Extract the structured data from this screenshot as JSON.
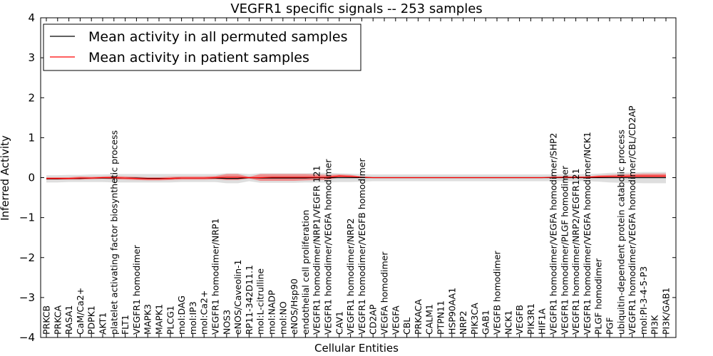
{
  "chart_data": {
    "type": "line",
    "title": "VEGFR1 specific signals -- 253 samples",
    "xlabel": "Cellular Entities",
    "ylabel": "Inferred Activity",
    "ylim": [
      -4,
      4
    ],
    "yticks": [
      "−4",
      "−3",
      "−2",
      "−1",
      "0",
      "1",
      "2",
      "3",
      "4"
    ],
    "ytick_values": [
      -4,
      -3,
      -2,
      -1,
      0,
      1,
      2,
      3,
      4
    ],
    "legend_position": "top-left",
    "categories": [
      "PRKCB",
      "PRKCA",
      "RASA1",
      "CaM/Ca2+",
      "PDPK1",
      "AKT1",
      "platelet activating factor biosynthetic process",
      "FLT1",
      "VEGFR1 homodimer",
      "MAPK3",
      "MAPK1",
      "PLCG1",
      "mol:DAG",
      "mol:IP3",
      "mol:Ca2+",
      "VEGFR1 homodimer/NRP1",
      "NOS3",
      "eNOS/Caveolin-1",
      "RP11-342D11.1",
      "mol:L-citrulline",
      "mol:NADP",
      "mol:NO",
      "eNOS/Hsp90",
      "endothelial cell proliferation",
      "VEGFR1 homodimer/NRP1/VEGFR 121",
      "VEGFR1 homodimer/VEGFA homodimer",
      "CAV1",
      "VEGFR1 homodimer/NRP2",
      "VEGFR1 homodimer/VEGFB homodimer",
      "CD2AP",
      "VEGFA homodimer",
      "VEGFA",
      "CBL",
      "PRKACA",
      "CALM1",
      "PTPN11",
      "HSP90AA1",
      "NRP2",
      "PIK3CA",
      "GAB1",
      "VEGFB homodimer",
      "NCK1",
      "VEGFB",
      "PIK3R1",
      "HIF1A",
      "VEGFR1 homodimer/VEGFA homodimer/SHP2",
      "VEGFR1 homodimer/PLGF homodimer",
      "VEGFR1 homodimer/NRP2/VEGFR121",
      "VEGFR1 homodimer/VEGFA homodimer/NCK1",
      "PLGF homodimer",
      "PGF",
      "ubiquitin-dependent protein catabolic process",
      "VEGFR1 homodimer/VEGFA homodimer/CBL/CD2AP",
      "mol:PI-3-4-5-P3",
      "PI3K",
      "PI3K/GAB1"
    ],
    "series": [
      {
        "name": "Mean activity in all permuted samples",
        "color": "#000000",
        "values": [
          -0.03,
          -0.03,
          -0.02,
          -0.02,
          -0.01,
          -0.01,
          -0.01,
          -0.01,
          -0.01,
          -0.02,
          -0.02,
          -0.02,
          -0.01,
          -0.01,
          -0.01,
          -0.01,
          -0.02,
          -0.02,
          0.0,
          -0.01,
          -0.01,
          -0.01,
          -0.01,
          -0.01,
          0.0,
          0.0,
          0.0,
          0.0,
          0.0,
          0.0,
          0.0,
          0.0,
          0.0,
          0.0,
          0.0,
          0.0,
          0.0,
          0.0,
          0.0,
          0.0,
          0.0,
          0.0,
          0.0,
          0.0,
          0.0,
          0.0,
          0.0,
          0.0,
          0.0,
          0.0,
          0.0,
          0.0,
          0.0,
          0.0,
          0.0,
          0.0
        ],
        "band": {
          "color": "#d3d3d3",
          "lower": [
            -0.12,
            -0.12,
            -0.11,
            -0.11,
            -0.11,
            -0.11,
            -0.12,
            -0.12,
            -0.12,
            -0.12,
            -0.12,
            -0.12,
            -0.11,
            -0.11,
            -0.11,
            -0.11,
            -0.14,
            -0.14,
            -0.09,
            -0.13,
            -0.13,
            -0.13,
            -0.13,
            -0.12,
            -0.12,
            -0.12,
            -0.11,
            -0.11,
            -0.1,
            -0.09,
            -0.09,
            -0.09,
            -0.09,
            -0.09,
            -0.09,
            -0.09,
            -0.09,
            -0.09,
            -0.09,
            -0.09,
            -0.09,
            -0.09,
            -0.09,
            -0.09,
            -0.09,
            -0.09,
            -0.09,
            -0.09,
            -0.09,
            -0.1,
            -0.12,
            -0.13,
            -0.13,
            -0.14,
            -0.14,
            -0.14
          ],
          "upper": [
            0.06,
            0.06,
            0.07,
            0.07,
            0.08,
            0.08,
            0.09,
            0.09,
            0.09,
            0.09,
            0.09,
            0.09,
            0.09,
            0.09,
            0.09,
            0.09,
            0.11,
            0.11,
            0.09,
            0.11,
            0.11,
            0.11,
            0.11,
            0.11,
            0.12,
            0.12,
            0.11,
            0.1,
            0.09,
            0.08,
            0.08,
            0.08,
            0.08,
            0.08,
            0.08,
            0.08,
            0.08,
            0.08,
            0.08,
            0.08,
            0.08,
            0.08,
            0.08,
            0.08,
            0.08,
            0.08,
            0.08,
            0.08,
            0.09,
            0.1,
            0.12,
            0.13,
            0.13,
            0.14,
            0.14,
            0.14
          ]
        }
      },
      {
        "name": "Mean activity in patient samples",
        "color": "#ff0000",
        "values": [
          -0.02,
          -0.02,
          -0.02,
          -0.01,
          -0.01,
          0.0,
          0.0,
          -0.01,
          -0.02,
          -0.03,
          -0.03,
          -0.02,
          -0.01,
          -0.01,
          -0.01,
          0.0,
          0.01,
          0.01,
          0.0,
          0.0,
          0.01,
          0.01,
          0.01,
          0.01,
          0.01,
          0.01,
          0.04,
          0.03,
          0.01,
          0.0,
          0.0,
          0.0,
          0.0,
          0.0,
          0.0,
          0.0,
          0.0,
          0.0,
          0.0,
          0.0,
          0.0,
          0.0,
          0.0,
          0.0,
          0.0,
          0.01,
          0.01,
          0.01,
          0.01,
          0.02,
          0.03,
          0.03,
          0.04,
          0.04,
          0.04,
          0.04
        ],
        "band": {
          "color": "#f08080",
          "lower": [
            -0.05,
            -0.05,
            -0.05,
            -0.05,
            -0.04,
            -0.03,
            -0.04,
            -0.05,
            -0.06,
            -0.07,
            -0.07,
            -0.06,
            -0.05,
            -0.05,
            -0.05,
            -0.04,
            -0.06,
            -0.06,
            -0.02,
            -0.08,
            -0.08,
            -0.08,
            -0.08,
            -0.07,
            -0.06,
            -0.05,
            0.0,
            -0.01,
            -0.01,
            -0.01,
            -0.01,
            -0.01,
            -0.01,
            -0.01,
            -0.01,
            -0.01,
            -0.01,
            -0.01,
            -0.01,
            -0.01,
            -0.01,
            -0.01,
            -0.01,
            -0.01,
            -0.01,
            -0.01,
            -0.01,
            -0.01,
            -0.01,
            -0.01,
            -0.01,
            -0.01,
            -0.01,
            -0.01,
            -0.01,
            -0.01
          ],
          "upper": [
            0.01,
            0.01,
            0.01,
            0.03,
            0.02,
            0.03,
            0.04,
            0.03,
            0.02,
            0.01,
            0.01,
            0.02,
            0.03,
            0.03,
            0.03,
            0.04,
            0.09,
            0.09,
            0.02,
            0.09,
            0.09,
            0.09,
            0.09,
            0.09,
            0.08,
            0.07,
            0.08,
            0.07,
            0.03,
            0.01,
            0.01,
            0.01,
            0.01,
            0.01,
            0.01,
            0.01,
            0.01,
            0.01,
            0.01,
            0.01,
            0.01,
            0.01,
            0.01,
            0.01,
            0.01,
            0.02,
            0.03,
            0.03,
            0.03,
            0.06,
            0.07,
            0.08,
            0.09,
            0.1,
            0.1,
            0.1
          ]
        }
      }
    ]
  }
}
